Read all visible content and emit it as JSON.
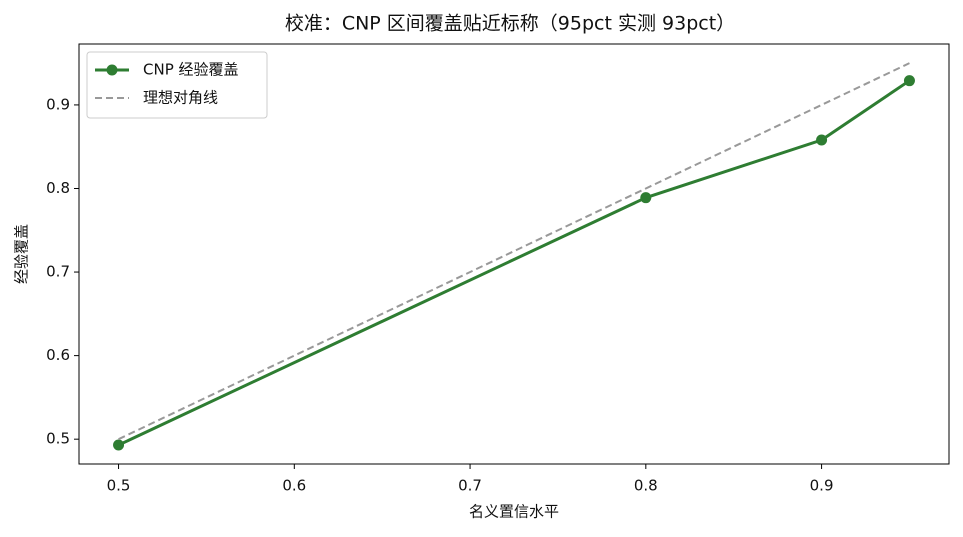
{
  "chart_data": {
    "type": "line",
    "title": "校准：CNP 区间覆盖贴近标称（95pct 实测 93pct）",
    "x_label": "名义置信水平",
    "y_label": "经验覆盖",
    "series": [
      {
        "name": "CNP 经验覆盖",
        "color": "#2e7d32",
        "marker": true,
        "dashed": false,
        "x": [
          0.5,
          0.8,
          0.9,
          0.95
        ],
        "values": [
          0.493,
          0.789,
          0.858,
          0.929
        ]
      },
      {
        "name": "理想对角线",
        "color": "#999999",
        "marker": false,
        "dashed": true,
        "x": [
          0.5,
          0.95
        ],
        "values": [
          0.5,
          0.95
        ]
      }
    ],
    "xlim": [
      0.4775,
      0.9725
    ],
    "xticks": [
      0.5,
      0.6,
      0.7,
      0.8,
      0.9
    ],
    "ylim": [
      0.4703,
      0.9729
    ],
    "yticks": [
      0.5,
      0.6,
      0.7,
      0.8,
      0.9
    ],
    "grid": false,
    "legend": "upper-left"
  }
}
